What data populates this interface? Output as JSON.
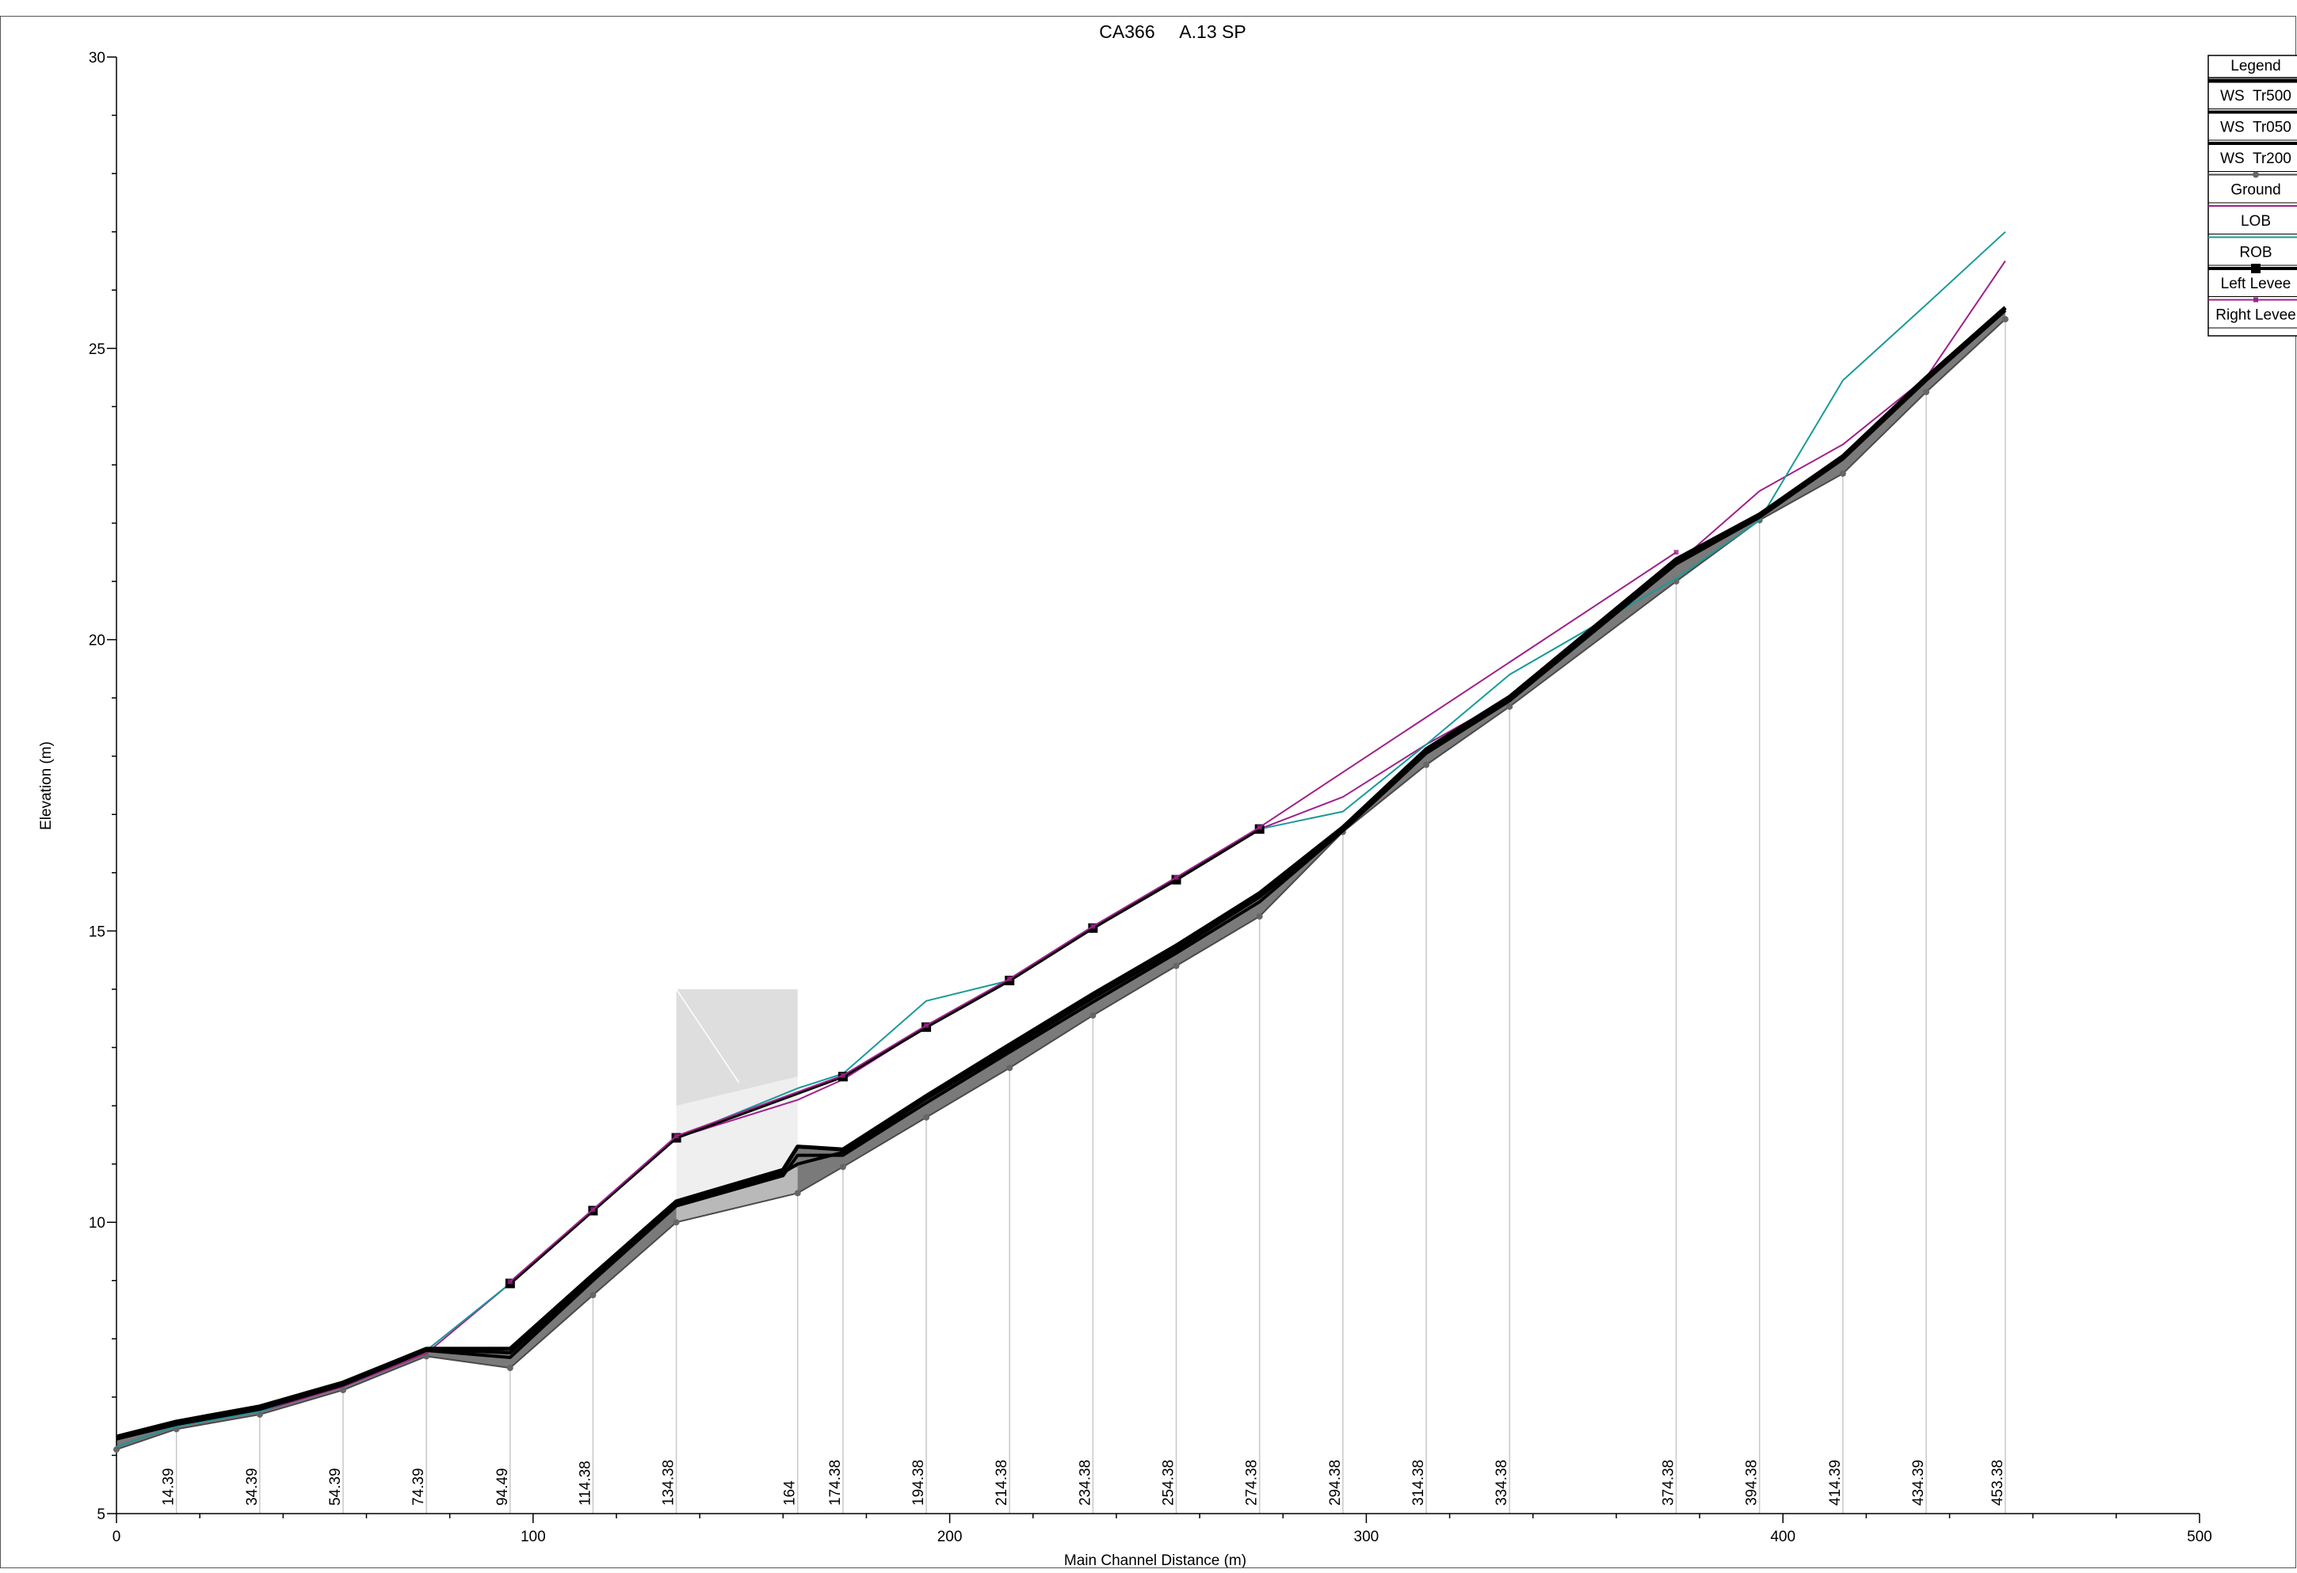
{
  "chart_data": {
    "type": "line",
    "title": "CA366     A.13 SP",
    "xlabel": "Main Channel Distance (m)",
    "ylabel": "Elevation (m)",
    "xlim": [
      0,
      500
    ],
    "ylim": [
      5,
      30
    ],
    "x_ticks": [
      "0",
      "100",
      "200",
      "300",
      "400",
      "500"
    ],
    "y_ticks": [
      "5",
      "10",
      "15",
      "20",
      "25",
      "30"
    ],
    "grid": false,
    "legend_title": "Legend",
    "legend_position": "right",
    "stations": [
      {
        "label": "14.39",
        "x": 14.39
      },
      {
        "label": "34.39",
        "x": 34.39
      },
      {
        "label": "54.39",
        "x": 54.39
      },
      {
        "label": "74.39",
        "x": 74.39
      },
      {
        "label": "94.49",
        "x": 94.49
      },
      {
        "label": "114.38",
        "x": 114.38
      },
      {
        "label": "134.38",
        "x": 134.38
      },
      {
        "label": "164",
        "x": 163.5
      },
      {
        "label": "174.38",
        "x": 174.38
      },
      {
        "label": "194.38",
        "x": 194.38
      },
      {
        "label": "214.38",
        "x": 214.38
      },
      {
        "label": "234.38",
        "x": 234.38
      },
      {
        "label": "254.38",
        "x": 254.38
      },
      {
        "label": "274.38",
        "x": 274.38
      },
      {
        "label": "294.38",
        "x": 294.38
      },
      {
        "label": "314.38",
        "x": 314.38
      },
      {
        "label": "334.38",
        "x": 334.38
      },
      {
        "label": "374.38",
        "x": 374.38
      },
      {
        "label": "394.38",
        "x": 394.38
      },
      {
        "label": "414.39",
        "x": 414.39
      },
      {
        "label": "434.39",
        "x": 434.39
      },
      {
        "label": "453.38",
        "x": 453.38
      }
    ],
    "bridge": {
      "x_start": 134.38,
      "x_end": 163.5,
      "top": 14.0,
      "deck_bottom_left": 12.0,
      "deck_bottom_right": 12.5
    },
    "series": [
      {
        "name": "WS  Tr500",
        "color": "#000000",
        "marker": "none",
        "x": [
          0,
          14.39,
          34.39,
          54.39,
          74.39,
          94.49,
          114.38,
          134.38,
          160,
          163.5,
          174.38,
          194.38,
          214.38,
          234.38,
          254.38,
          274.38,
          294.38,
          314.38,
          334.38,
          374.38,
          394.38,
          414.39,
          434.39,
          453.38
        ],
        "y": [
          6.32,
          6.58,
          6.84,
          7.25,
          7.83,
          7.83,
          9.1,
          10.36,
          10.9,
          11.3,
          11.25,
          12.17,
          13.05,
          13.92,
          14.75,
          15.65,
          16.78,
          18.12,
          19.02,
          21.38,
          22.15,
          23.15,
          24.5,
          25.7
        ]
      },
      {
        "name": "WS  Tr050",
        "color": "#000000",
        "marker": "none",
        "x": [
          0,
          14.39,
          34.39,
          54.39,
          74.39,
          94.49,
          114.38,
          134.38,
          160,
          163.5,
          174.38,
          194.38,
          214.38,
          234.38,
          254.38,
          274.38,
          294.38,
          314.38,
          334.38,
          374.38,
          394.38,
          414.39,
          434.39,
          453.38
        ],
        "y": [
          6.28,
          6.53,
          6.79,
          7.21,
          7.8,
          7.68,
          9.0,
          10.28,
          10.8,
          11.15,
          11.15,
          12.05,
          12.92,
          13.78,
          14.62,
          15.5,
          16.72,
          18.05,
          18.95,
          21.3,
          22.1,
          23.1,
          24.45,
          25.65
        ]
      },
      {
        "name": "WS  Tr200",
        "color": "#000000",
        "marker": "none",
        "x": [
          0,
          14.39,
          34.39,
          54.39,
          74.39,
          94.49,
          114.38,
          134.38,
          160,
          163.5,
          174.38,
          194.38,
          214.38,
          234.38,
          254.38,
          274.38,
          294.38,
          314.38,
          334.38,
          374.38,
          394.38,
          414.39,
          434.39,
          453.38
        ],
        "y": [
          6.3,
          6.56,
          6.82,
          7.23,
          7.82,
          7.76,
          9.05,
          10.32,
          10.85,
          11.0,
          11.2,
          12.12,
          12.98,
          13.85,
          14.68,
          15.58,
          16.75,
          18.08,
          18.98,
          21.34,
          22.12,
          23.12,
          24.48,
          25.68
        ]
      },
      {
        "name": "Ground",
        "color": "#000000",
        "marker": "star",
        "x": [
          0,
          14.39,
          34.39,
          54.39,
          74.39,
          94.49,
          114.38,
          134.38,
          163.5,
          174.38,
          194.38,
          214.38,
          234.38,
          254.38,
          274.38,
          294.38,
          314.38,
          334.38,
          374.38,
          394.38,
          414.39,
          434.39,
          453.38
        ],
        "y": [
          6.1,
          6.45,
          6.7,
          7.12,
          7.7,
          7.5,
          8.75,
          10.0,
          10.5,
          10.95,
          11.8,
          12.65,
          13.55,
          14.4,
          15.25,
          16.7,
          17.85,
          18.85,
          21.0,
          22.05,
          22.85,
          24.25,
          25.5
        ]
      },
      {
        "name": "LOB",
        "color": "#a0208a",
        "marker": "none",
        "x": [
          0,
          14.39,
          34.39,
          54.39,
          74.39,
          94.49,
          114.38,
          134.38,
          163.5,
          174.38,
          194.38,
          214.38,
          234.38,
          254.38,
          274.38,
          294.38,
          314.38,
          334.38,
          374.38,
          394.38,
          414.39,
          434.39,
          453.38
        ],
        "y": [
          6.15,
          6.5,
          6.75,
          7.18,
          7.75,
          8.95,
          10.2,
          11.45,
          12.1,
          12.45,
          13.35,
          14.15,
          15.05,
          15.9,
          16.75,
          17.3,
          18.2,
          19.0,
          21.3,
          22.55,
          23.35,
          24.5,
          26.5
        ]
      },
      {
        "name": "ROB",
        "color": "#1a9a9a",
        "marker": "none",
        "x": [
          0,
          14.39,
          34.39,
          54.39,
          74.39,
          94.49,
          114.38,
          134.38,
          163.5,
          174.38,
          194.38,
          214.38,
          234.38,
          254.38,
          274.38,
          294.38,
          314.38,
          334.38,
          374.38,
          394.38,
          414.39,
          434.39,
          453.38
        ],
        "y": [
          6.15,
          6.5,
          6.75,
          7.25,
          7.8,
          8.95,
          10.2,
          11.45,
          12.3,
          12.55,
          13.8,
          14.15,
          15.05,
          15.9,
          16.75,
          17.05,
          18.2,
          19.4,
          21.05,
          22.05,
          24.45,
          25.75,
          27.0
        ]
      },
      {
        "name": "Left Levee",
        "color": "#000000",
        "marker": "square",
        "x": [
          94.49,
          114.38,
          134.38,
          174.38,
          194.38,
          214.38,
          234.38,
          254.38,
          274.38
        ],
        "y": [
          8.95,
          10.2,
          11.45,
          12.5,
          13.35,
          14.15,
          15.05,
          15.88,
          16.75
        ]
      },
      {
        "name": "Right Levee",
        "color": "#a0208a",
        "marker": "small",
        "x": [
          94.49,
          114.38,
          134.38,
          174.38,
          194.38,
          214.38,
          234.38,
          254.38,
          274.38,
          374.38
        ],
        "y": [
          8.98,
          10.22,
          11.48,
          12.52,
          13.38,
          14.18,
          15.08,
          15.92,
          16.78,
          21.5
        ]
      }
    ]
  }
}
